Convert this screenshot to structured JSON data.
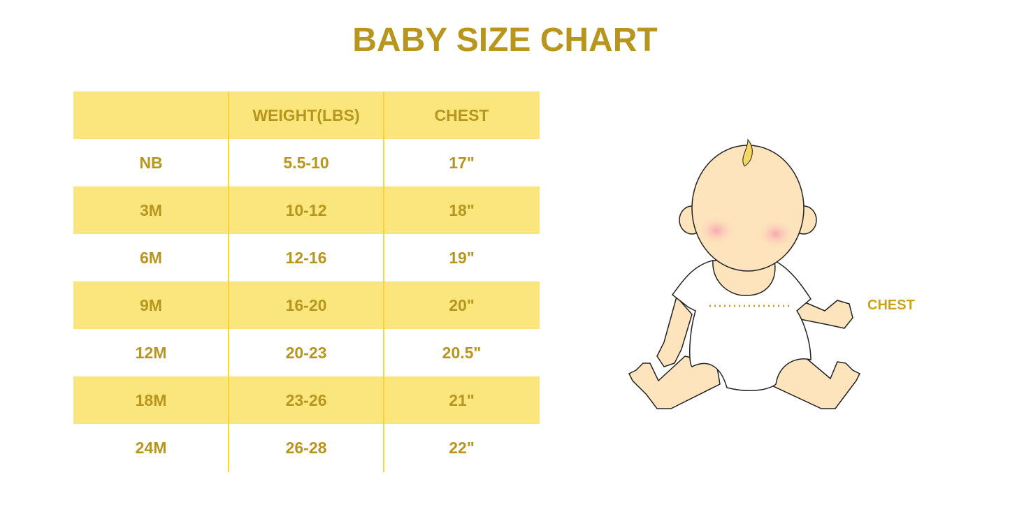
{
  "title": "BABY SIZE CHART",
  "table": {
    "headers": [
      "",
      "WEIGHT(LBS)",
      "CHEST"
    ],
    "rows": [
      [
        "NB",
        "5.5-10",
        "17\""
      ],
      [
        "3M",
        "10-12",
        "18\""
      ],
      [
        "6M",
        "12-16",
        "19\""
      ],
      [
        "9M",
        "16-20",
        "20\""
      ],
      [
        "12M",
        "20-23",
        "20.5\""
      ],
      [
        "18M",
        "23-26",
        "21\""
      ],
      [
        "24M",
        "26-28",
        "22\""
      ]
    ]
  },
  "illustration": {
    "label": "CHEST",
    "icon": "baby-measurement-illustration"
  },
  "colors": {
    "accent_text": "#b8961e",
    "band": "#fbe57d",
    "divider": "#f7d43a",
    "skin": "#fde4bd"
  }
}
